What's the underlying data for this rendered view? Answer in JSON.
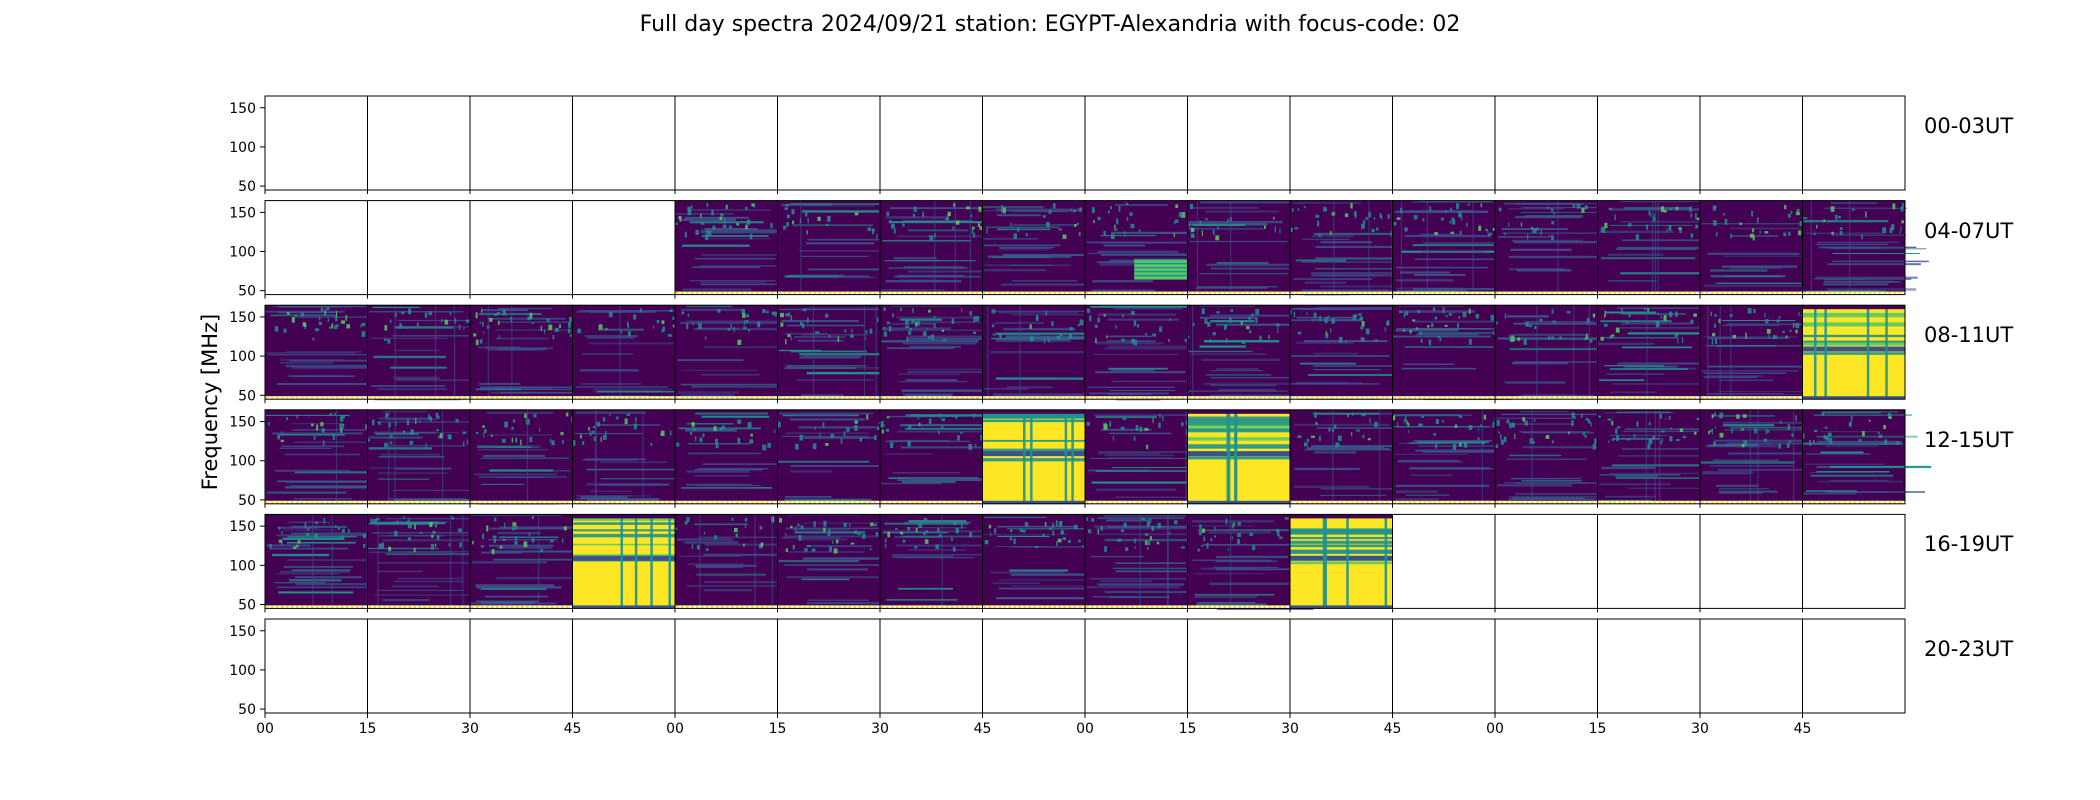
{
  "chart_data": {
    "type": "heatmap",
    "title": "Full day spectra 2024/09/21 station: EGYPT-Alexandria with focus-code: 02",
    "ylabel": "Frequency [MHz]",
    "xlabel": "",
    "ylim": [
      45,
      165
    ],
    "yticks": [
      "50",
      "100",
      "150"
    ],
    "xtick_labels": [
      "00",
      "15",
      "30",
      "45",
      "00",
      "15",
      "30",
      "45",
      "00",
      "15",
      "30",
      "45",
      "00",
      "15",
      "30",
      "45"
    ],
    "rows": [
      {
        "label": "00-03UT",
        "panels": [
          "empty",
          "empty",
          "empty",
          "empty",
          "empty",
          "empty",
          "empty",
          "empty",
          "empty",
          "empty",
          "empty",
          "empty",
          "empty",
          "empty",
          "empty",
          "empty"
        ]
      },
      {
        "label": "04-07UT",
        "panels": [
          "empty",
          "empty",
          "empty",
          "empty",
          "spectrum",
          "spectrum",
          "spectrum",
          "spectrum",
          "burst-low",
          "spectrum",
          "spectrum",
          "spectrum",
          "spectrum",
          "spectrum",
          "spectrum",
          "spectrum"
        ]
      },
      {
        "label": "08-11UT",
        "panels": [
          "spectrum",
          "spectrum",
          "spectrum",
          "spectrum",
          "spectrum",
          "spectrum",
          "spectrum",
          "spectrum",
          "spectrum",
          "spectrum",
          "spectrum",
          "spectrum",
          "spectrum",
          "spectrum",
          "spectrum",
          "saturated"
        ]
      },
      {
        "label": "12-15UT",
        "panels": [
          "spectrum",
          "spectrum",
          "spectrum",
          "spectrum",
          "spectrum",
          "spectrum",
          "spectrum",
          "saturated",
          "spectrum",
          "saturated",
          "spectrum",
          "spectrum",
          "spectrum",
          "spectrum",
          "spectrum",
          "spectrum"
        ]
      },
      {
        "label": "16-19UT",
        "panels": [
          "spectrum",
          "spectrum",
          "spectrum",
          "saturated",
          "spectrum",
          "spectrum",
          "spectrum",
          "spectrum",
          "spectrum",
          "spectrum",
          "saturated",
          "empty",
          "empty",
          "empty",
          "empty",
          "empty"
        ]
      },
      {
        "label": "20-23UT",
        "panels": [
          "empty",
          "empty",
          "empty",
          "empty",
          "empty",
          "empty",
          "empty",
          "empty",
          "empty",
          "empty",
          "empty",
          "empty",
          "empty",
          "empty",
          "empty",
          "empty"
        ]
      }
    ],
    "colormap": [
      "#440154",
      "#3b528b",
      "#21918c",
      "#5ec962",
      "#fde725"
    ],
    "grid": false
  }
}
